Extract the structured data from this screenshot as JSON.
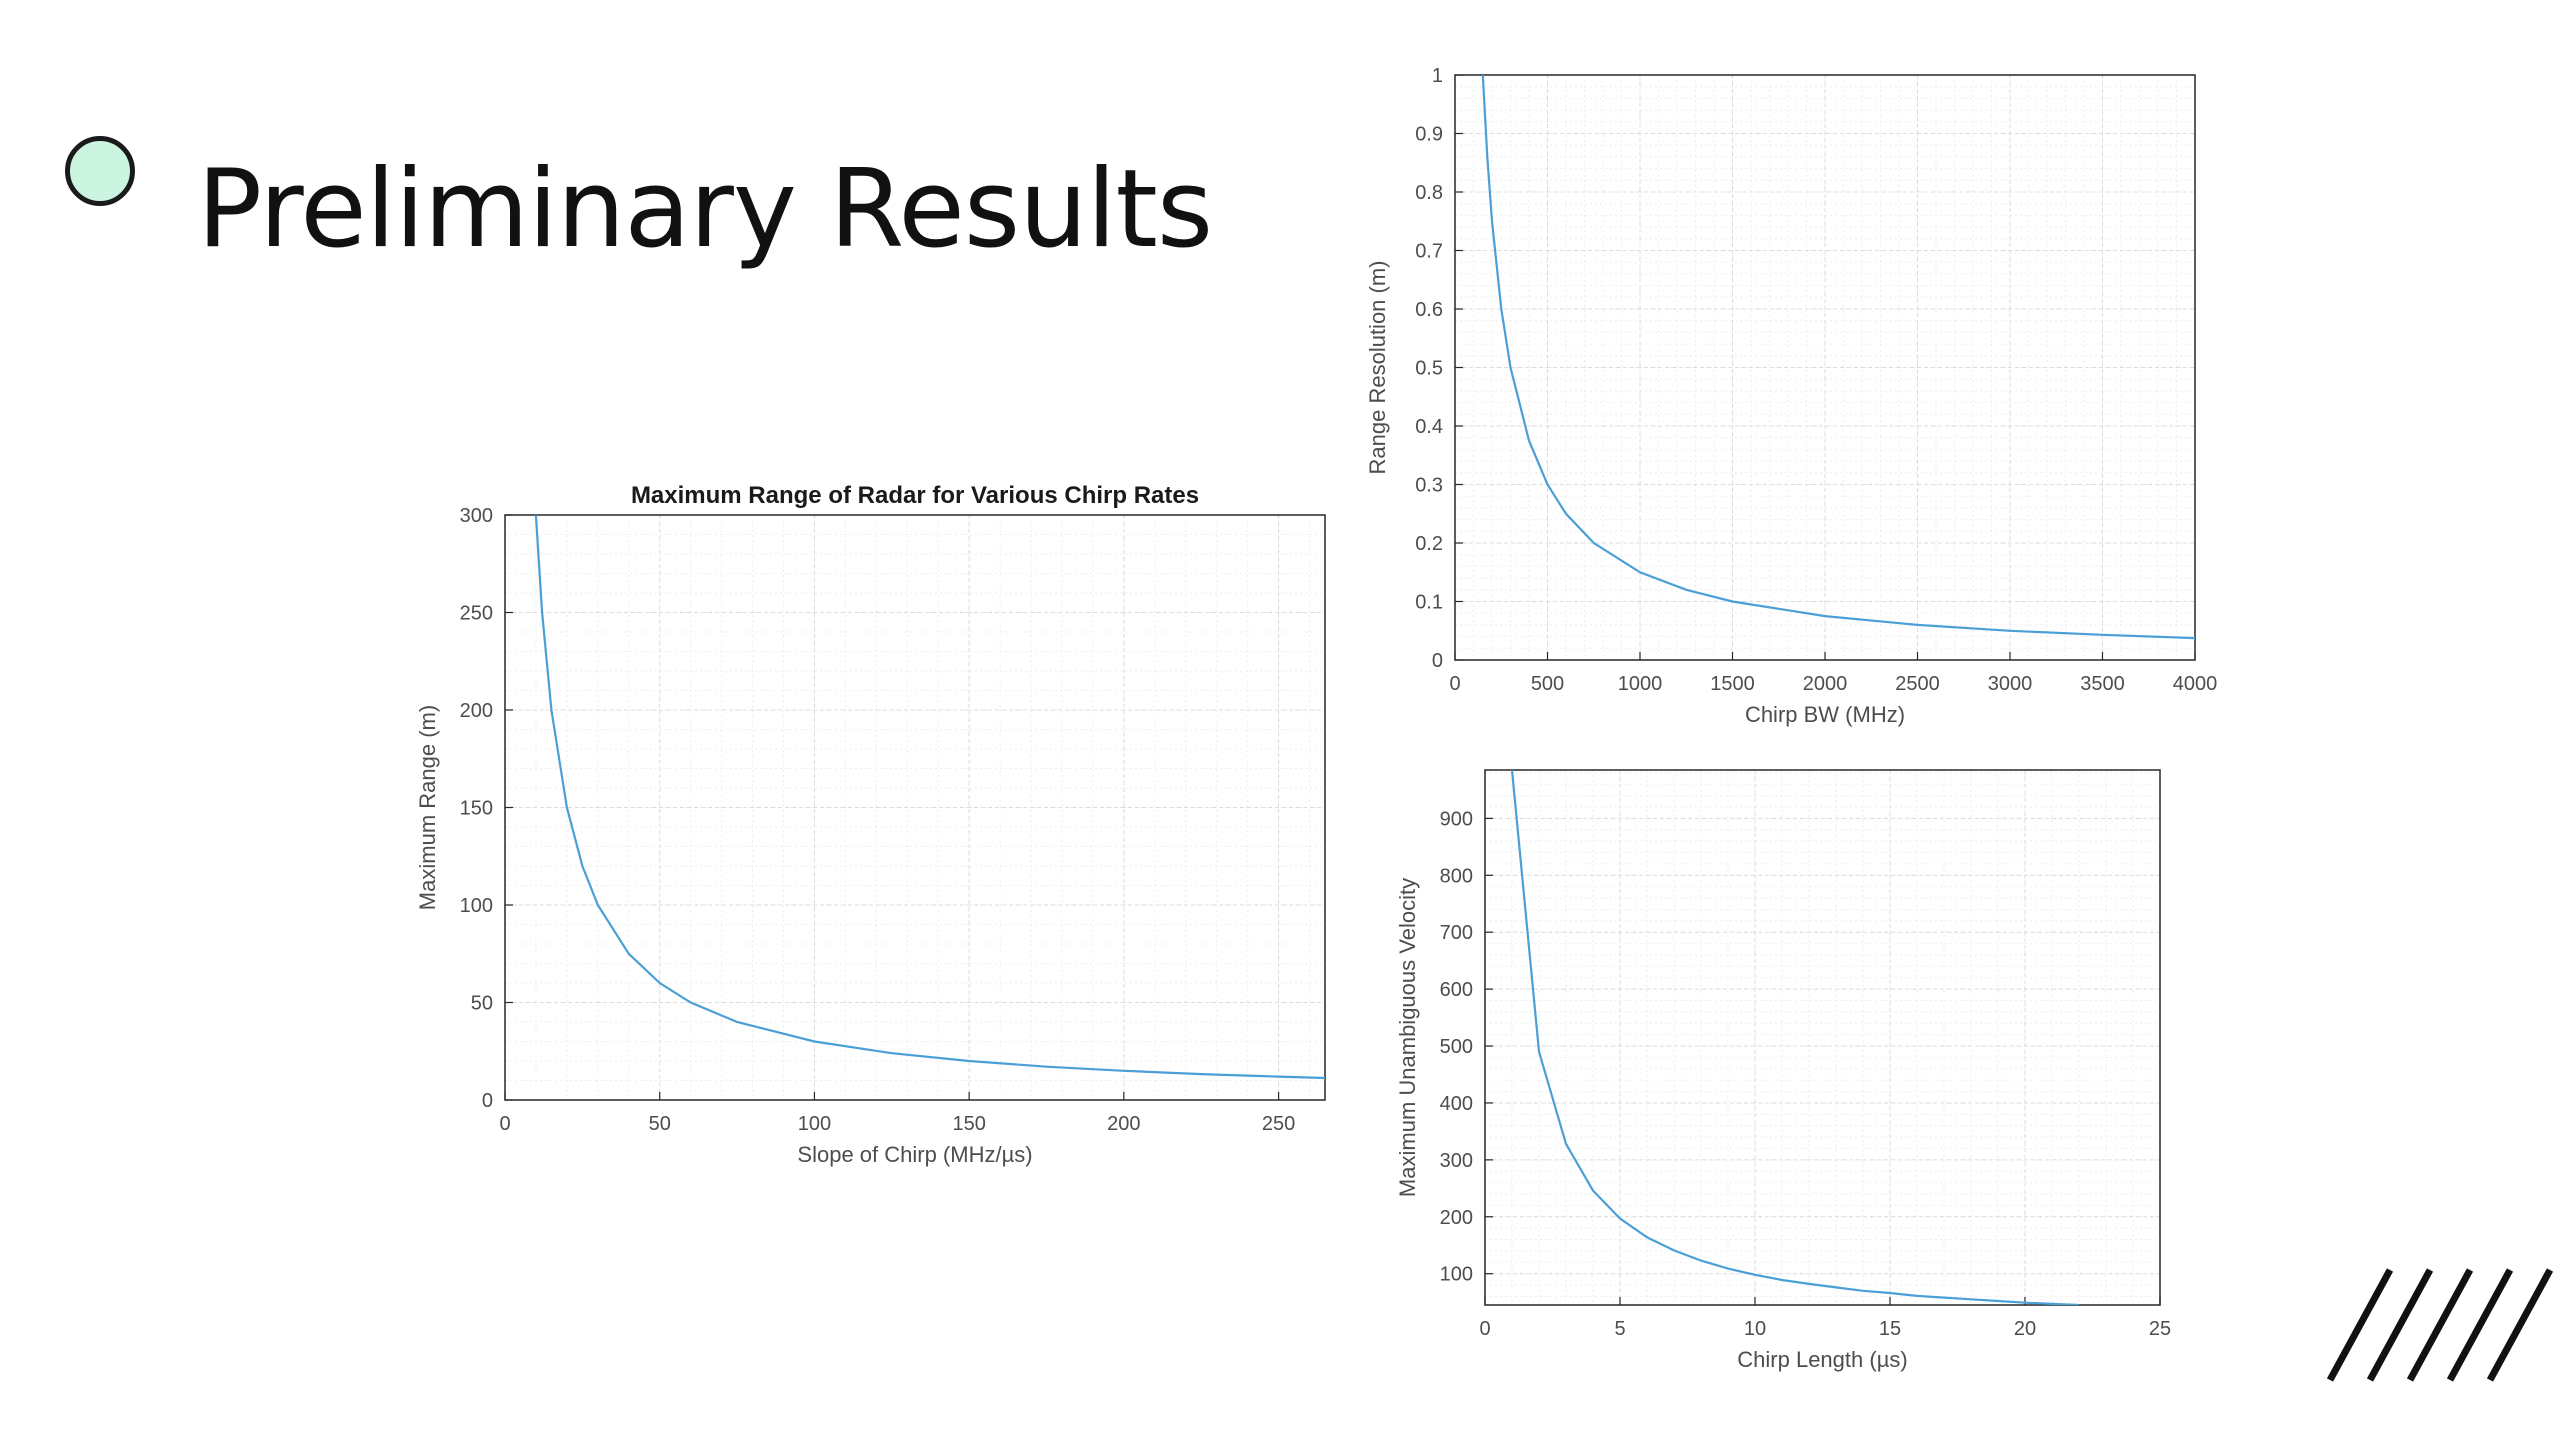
{
  "slide": {
    "title": "Preliminary Results"
  },
  "colors": {
    "curve": "#4a9fd6",
    "bullet_fill": "#ccf5e1",
    "axis": "#262626",
    "grid": "#dcdcdc"
  },
  "icons": {
    "bullet": "circle-bullet-icon",
    "decoration": "diagonal-lines-icon"
  },
  "chart_data": [
    {
      "type": "line",
      "title": "Maximum Range of Radar for Various Chirp Rates",
      "xlabel": "Slope of Chirp (MHz/µs)",
      "ylabel": "Maximum Range (m)",
      "xlim": [
        0,
        265
      ],
      "ylim": [
        0,
        300
      ],
      "xticks": [
        0,
        50,
        100,
        150,
        200,
        250
      ],
      "yticks": [
        0,
        50,
        100,
        150,
        200,
        250,
        300
      ],
      "grid": true,
      "minor_grid": true,
      "series": [
        {
          "formula_k": 3000,
          "x": [
            10,
            12,
            15,
            20,
            25,
            30,
            40,
            50,
            60,
            75,
            100,
            125,
            150,
            175,
            200,
            225,
            250,
            265
          ],
          "y": [
            300,
            250,
            200,
            150,
            120,
            100,
            75,
            60,
            50,
            40,
            30,
            24,
            20,
            17.1,
            15,
            13.3,
            12,
            11.3
          ]
        }
      ]
    },
    {
      "type": "line",
      "title": "",
      "xlabel": "Chirp BW (MHz)",
      "ylabel": "Range Resolution (m)",
      "xlim": [
        0,
        4000
      ],
      "ylim": [
        0,
        1
      ],
      "xticks": [
        0,
        500,
        1000,
        1500,
        2000,
        2500,
        3000,
        3500,
        4000
      ],
      "yticks": [
        0,
        0.1,
        0.2,
        0.3,
        0.4,
        0.5,
        0.6,
        0.7,
        0.8,
        0.9,
        1
      ],
      "grid": true,
      "minor_grid": true,
      "series": [
        {
          "x": [
            150,
            175,
            200,
            250,
            300,
            400,
            500,
            600,
            750,
            1000,
            1250,
            1500,
            2000,
            2500,
            3000,
            3500,
            4000
          ],
          "y": [
            1,
            0.857,
            0.75,
            0.6,
            0.5,
            0.375,
            0.3,
            0.25,
            0.2,
            0.15,
            0.12,
            0.1,
            0.075,
            0.06,
            0.05,
            0.043,
            0.0375
          ]
        }
      ]
    },
    {
      "type": "line",
      "title": "",
      "xlabel": "Chirp Length (µs)",
      "ylabel": "Maximum Unambiguous Velocity",
      "xlim": [
        0,
        25
      ],
      "ylim": [
        45,
        985
      ],
      "xticks": [
        0,
        5,
        10,
        15,
        20,
        25
      ],
      "yticks": [
        100,
        200,
        300,
        400,
        500,
        600,
        700,
        800,
        900
      ],
      "grid": true,
      "minor_grid": true,
      "series": [
        {
          "x": [
            1,
            2,
            3,
            4,
            5,
            6,
            7,
            8,
            9,
            10,
            11,
            12,
            13,
            14,
            15,
            16,
            17,
            18,
            19,
            20,
            21,
            22
          ],
          "y": [
            985,
            490,
            328,
            246,
            197,
            164,
            141,
            123,
            109,
            98,
            89,
            82,
            76,
            70,
            66,
            61,
            58,
            55,
            52,
            49,
            47,
            45
          ]
        }
      ]
    }
  ]
}
